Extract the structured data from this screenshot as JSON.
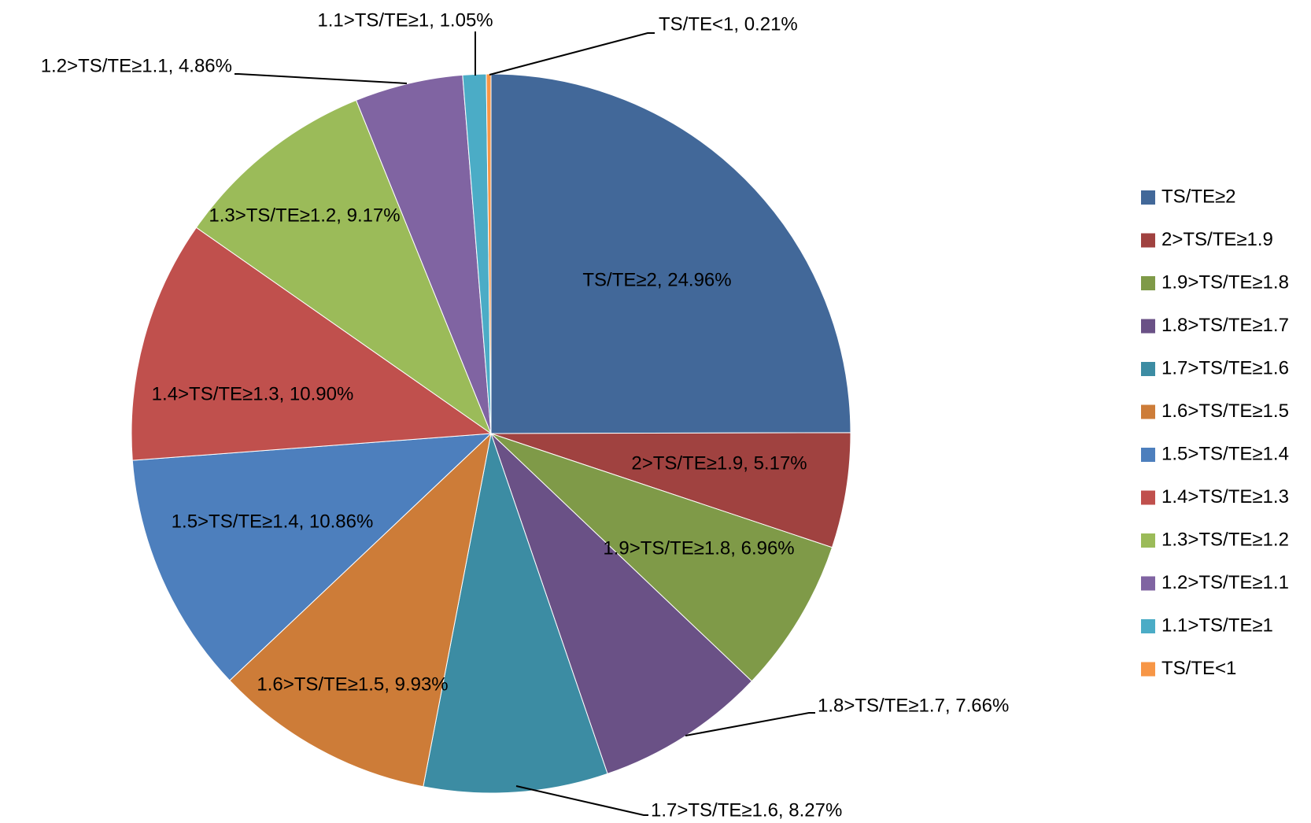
{
  "chart_data": {
    "type": "pie",
    "categories": [
      "TS/TE≥2",
      "2>TS/TE≥1.9",
      "1.9>TS/TE≥1.8",
      "1.8>TS/TE≥1.7",
      "1.7>TS/TE≥1.6",
      "1.6>TS/TE≥1.5",
      "1.5>TS/TE≥1.4",
      "1.4>TS/TE≥1.3",
      "1.3>TS/TE≥1.2",
      "1.2>TS/TE≥1.1",
      "1.1>TS/TE≥1",
      "TS/TE<1"
    ],
    "values": [
      24.96,
      5.17,
      6.96,
      7.66,
      8.27,
      9.93,
      10.86,
      10.9,
      9.17,
      4.86,
      1.05,
      0.21
    ],
    "value_labels": [
      "TS/TE≥2, 24.96%",
      "2>TS/TE≥1.9, 5.17%",
      "1.9>TS/TE≥1.8, 6.96%",
      "1.8>TS/TE≥1.7, 7.66%",
      "1.7>TS/TE≥1.6, 8.27%",
      "1.6>TS/TE≥1.5, 9.93%",
      "1.5>TS/TE≥1.4, 10.86%",
      "1.4>TS/TE≥1.3, 10.90%",
      "1.3>TS/TE≥1.2, 9.17%",
      "1.2>TS/TE≥1.1, 4.86%",
      "1.1>TS/TE≥1, 1.05%",
      "TS/TE<1, 0.21%"
    ],
    "colors": [
      "#426899",
      "#a04240",
      "#7f9a48",
      "#6a5186",
      "#3c8ca3",
      "#cd7c38",
      "#4d7fbd",
      "#c0504d",
      "#9bbb59",
      "#8064a2",
      "#4bacc6",
      "#f79646"
    ],
    "legend": "right"
  }
}
